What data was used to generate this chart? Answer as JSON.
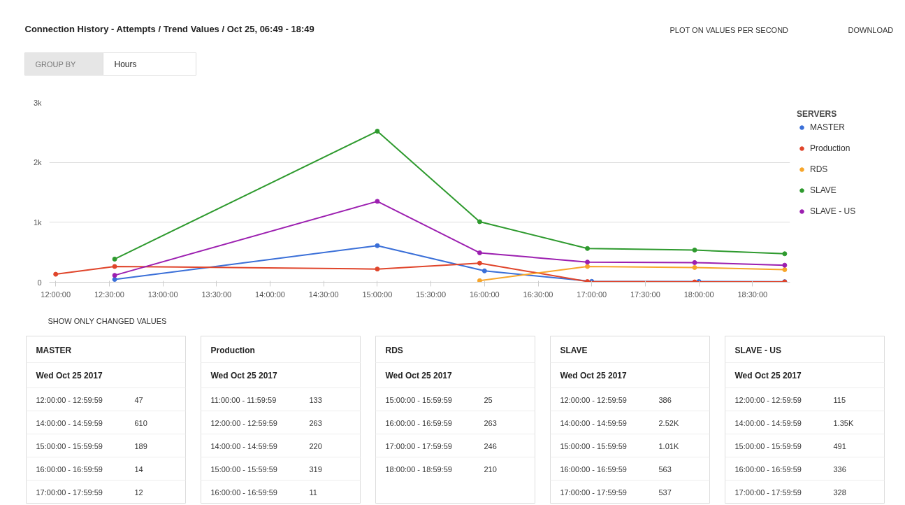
{
  "chart_data": [
    {
      "type": "line",
      "title": "Connection History - Attempts / Trend Values / Oct 25, 06:49 - 18:49",
      "legend_title": "SERVERS",
      "legend": "right",
      "grid": "y",
      "marker": "circle",
      "line_style": "solid",
      "annotations": [
        "PLOT ON VALUES PER SECOND",
        "DOWNLOAD",
        "GROUP BY",
        "Hours",
        "SHOW ONLY CHANGED VALUES"
      ],
      "xlim": [
        11.94,
        18.85
      ],
      "ylim": [
        0,
        3000
      ],
      "xticks": [
        {
          "value": 12,
          "label": "12:00:00"
        },
        {
          "value": 12.5,
          "label": "12:30:00"
        },
        {
          "value": 13,
          "label": "13:00:00"
        },
        {
          "value": 13.5,
          "label": "13:30:00"
        },
        {
          "value": 14,
          "label": "14:00:00"
        },
        {
          "value": 14.5,
          "label": "14:30:00"
        },
        {
          "value": 15,
          "label": "15:00:00"
        },
        {
          "value": 15.5,
          "label": "15:30:00"
        },
        {
          "value": 16,
          "label": "16:00:00"
        },
        {
          "value": 16.5,
          "label": "16:30:00"
        },
        {
          "value": 17,
          "label": "17:00:00"
        },
        {
          "value": 17.5,
          "label": "17:30:00"
        },
        {
          "value": 18,
          "label": "18:00:00"
        },
        {
          "value": 18.5,
          "label": "18:30:00"
        }
      ],
      "yticks": [
        0,
        {
          "value": 1000,
          "label": "1k"
        },
        {
          "value": 2000,
          "label": "2k"
        },
        {
          "value": 3000,
          "label": "3k"
        }
      ],
      "series": [
        {
          "name": "MASTER",
          "color": "#3a6fd8",
          "x": [
            12.55,
            15.0,
            16.0,
            17.0,
            18.0,
            18.8
          ],
          "values": [
            47,
            610,
            189,
            14,
            12,
            10
          ]
        },
        {
          "name": "Production",
          "color": "#e0452b",
          "x": [
            12.0,
            12.55,
            15.0,
            15.955,
            16.96,
            17.96,
            18.8
          ],
          "values": [
            133,
            263,
            220,
            319,
            11,
            5,
            5
          ]
        },
        {
          "name": "RDS",
          "color": "#f7a52a",
          "x": [
            15.955,
            16.96,
            17.96,
            18.8
          ],
          "values": [
            25,
            263,
            246,
            210
          ]
        },
        {
          "name": "SLAVE",
          "color": "#2e9a2e",
          "x": [
            12.55,
            15.0,
            15.955,
            16.96,
            17.96,
            18.8
          ],
          "values": [
            386,
            2520,
            1010,
            563,
            537,
            475
          ]
        },
        {
          "name": "SLAVE - US",
          "color": "#9c1fb0",
          "x": [
            12.55,
            15.0,
            15.955,
            16.96,
            17.96,
            18.8
          ],
          "values": [
            115,
            1350,
            491,
            336,
            328,
            284
          ]
        }
      ]
    },
    {
      "type": "other",
      "title": "MASTER",
      "subtitle": "Wed Oct 25 2017",
      "annotations": [
        "12:00:00 - 12:59:59",
        "47",
        "14:00:00 - 14:59:59",
        "610",
        "15:00:00 - 15:59:59",
        "189",
        "16:00:00 - 16:59:59",
        "14",
        "17:00:00 - 17:59:59",
        "12"
      ]
    },
    {
      "type": "other",
      "title": "Production",
      "subtitle": "Wed Oct 25 2017",
      "annotations": [
        "11:00:00 - 11:59:59",
        "133",
        "12:00:00 - 12:59:59",
        "263",
        "14:00:00 - 14:59:59",
        "220",
        "15:00:00 - 15:59:59",
        "319",
        "16:00:00 - 16:59:59",
        "11"
      ]
    },
    {
      "type": "other",
      "title": "RDS",
      "subtitle": "Wed Oct 25 2017",
      "annotations": [
        "15:00:00 - 15:59:59",
        "25",
        "16:00:00 - 16:59:59",
        "263",
        "17:00:00 - 17:59:59",
        "246",
        "18:00:00 - 18:59:59",
        "210"
      ]
    },
    {
      "type": "other",
      "title": "SLAVE",
      "subtitle": "Wed Oct 25 2017",
      "annotations": [
        "12:00:00 - 12:59:59",
        "386",
        "14:00:00 - 14:59:59",
        "2.52K",
        "15:00:00 - 15:59:59",
        "1.01K",
        "16:00:00 - 16:59:59",
        "563",
        "17:00:00 - 17:59:59",
        "537"
      ]
    },
    {
      "type": "other",
      "title": "SLAVE - US",
      "subtitle": "Wed Oct 25 2017",
      "annotations": [
        "12:00:00 - 12:59:59",
        "115",
        "14:00:00 - 14:59:59",
        "1.35K",
        "15:00:00 - 15:59:59",
        "491",
        "16:00:00 - 16:59:59",
        "336",
        "17:00:00 - 17:59:59",
        "328"
      ]
    }
  ]
}
